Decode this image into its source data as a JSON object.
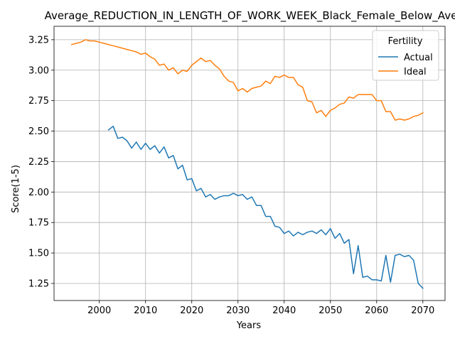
{
  "chart_data": {
    "type": "line",
    "title": "Average_REDUCTION_IN_LENGTH_OF_WORK_WEEK_Black_Female_Below_Average",
    "xlabel": "Years",
    "ylabel": "Score(1-5)",
    "xlim": [
      1990.2,
      2074.8
    ],
    "ylim": [
      1.11,
      3.36
    ],
    "xticks": [
      2000,
      2010,
      2020,
      2030,
      2040,
      2050,
      2060,
      2070
    ],
    "yticks": [
      1.25,
      1.5,
      1.75,
      2.0,
      2.25,
      2.5,
      2.75,
      3.0,
      3.25
    ],
    "xtick_labels": [
      "2000",
      "2010",
      "2020",
      "2030",
      "2040",
      "2050",
      "2060",
      "2070"
    ],
    "ytick_labels": [
      "1.25",
      "1.50",
      "1.75",
      "2.00",
      "2.25",
      "2.50",
      "2.75",
      "3.00",
      "3.25"
    ],
    "grid": true,
    "legend": {
      "title": "Fertility",
      "placement": "top-right"
    },
    "series": [
      {
        "name": "Actual",
        "color": "#1f77b4",
        "x": [
          2002,
          2003,
          2004,
          2005,
          2006,
          2007,
          2008,
          2009,
          2010,
          2011,
          2012,
          2013,
          2014,
          2015,
          2016,
          2017,
          2018,
          2019,
          2020,
          2021,
          2022,
          2023,
          2024,
          2025,
          2026,
          2027,
          2028,
          2029,
          2030,
          2031,
          2032,
          2033,
          2034,
          2035,
          2036,
          2037,
          2038,
          2039,
          2040,
          2041,
          2042,
          2043,
          2044,
          2045,
          2046,
          2047,
          2048,
          2049,
          2050,
          2051,
          2052,
          2053,
          2054,
          2055,
          2056,
          2057,
          2058,
          2059,
          2060,
          2061,
          2062,
          2063,
          2064,
          2065,
          2066,
          2067,
          2068,
          2069,
          2070
        ],
        "values": [
          2.51,
          2.54,
          2.44,
          2.45,
          2.42,
          2.36,
          2.41,
          2.35,
          2.4,
          2.35,
          2.38,
          2.32,
          2.37,
          2.28,
          2.3,
          2.19,
          2.22,
          2.1,
          2.11,
          2.01,
          2.03,
          1.96,
          1.98,
          1.94,
          1.96,
          1.97,
          1.97,
          1.99,
          1.97,
          1.98,
          1.94,
          1.96,
          1.89,
          1.89,
          1.8,
          1.8,
          1.72,
          1.71,
          1.66,
          1.68,
          1.64,
          1.67,
          1.65,
          1.67,
          1.68,
          1.66,
          1.69,
          1.65,
          1.7,
          1.62,
          1.66,
          1.58,
          1.61,
          1.33,
          1.56,
          1.3,
          1.31,
          1.28,
          1.28,
          1.27,
          1.48,
          1.26,
          1.48,
          1.49,
          1.47,
          1.48,
          1.44,
          1.25,
          1.21
        ]
      },
      {
        "name": "Ideal",
        "color": "#ff7f0e",
        "x": [
          1994,
          1995,
          1996,
          1997,
          1998,
          1999,
          2000,
          2001,
          2002,
          2003,
          2004,
          2005,
          2006,
          2007,
          2008,
          2009,
          2010,
          2011,
          2012,
          2013,
          2014,
          2015,
          2016,
          2017,
          2018,
          2019,
          2020,
          2021,
          2022,
          2023,
          2024,
          2025,
          2026,
          2027,
          2028,
          2029,
          2030,
          2031,
          2032,
          2033,
          2034,
          2035,
          2036,
          2037,
          2038,
          2039,
          2040,
          2041,
          2042,
          2043,
          2044,
          2045,
          2046,
          2047,
          2048,
          2049,
          2050,
          2051,
          2052,
          2053,
          2054,
          2055,
          2056,
          2057,
          2058,
          2059,
          2060,
          2061,
          2062,
          2063,
          2064,
          2065,
          2066,
          2067,
          2068,
          2069,
          2070
        ],
        "values": [
          3.21,
          3.22,
          3.23,
          3.25,
          3.24,
          3.24,
          3.23,
          3.22,
          3.21,
          3.2,
          3.19,
          3.18,
          3.17,
          3.16,
          3.15,
          3.13,
          3.14,
          3.11,
          3.09,
          3.04,
          3.05,
          3.0,
          3.02,
          2.97,
          3.0,
          2.99,
          3.04,
          3.07,
          3.1,
          3.07,
          3.08,
          3.04,
          3.01,
          2.95,
          2.91,
          2.9,
          2.83,
          2.85,
          2.82,
          2.85,
          2.86,
          2.87,
          2.91,
          2.89,
          2.95,
          2.94,
          2.96,
          2.94,
          2.94,
          2.88,
          2.86,
          2.75,
          2.74,
          2.65,
          2.67,
          2.62,
          2.67,
          2.69,
          2.72,
          2.73,
          2.78,
          2.77,
          2.8,
          2.8,
          2.8,
          2.8,
          2.75,
          2.75,
          2.66,
          2.66,
          2.59,
          2.6,
          2.59,
          2.6,
          2.62,
          2.63,
          2.65
        ]
      }
    ]
  }
}
